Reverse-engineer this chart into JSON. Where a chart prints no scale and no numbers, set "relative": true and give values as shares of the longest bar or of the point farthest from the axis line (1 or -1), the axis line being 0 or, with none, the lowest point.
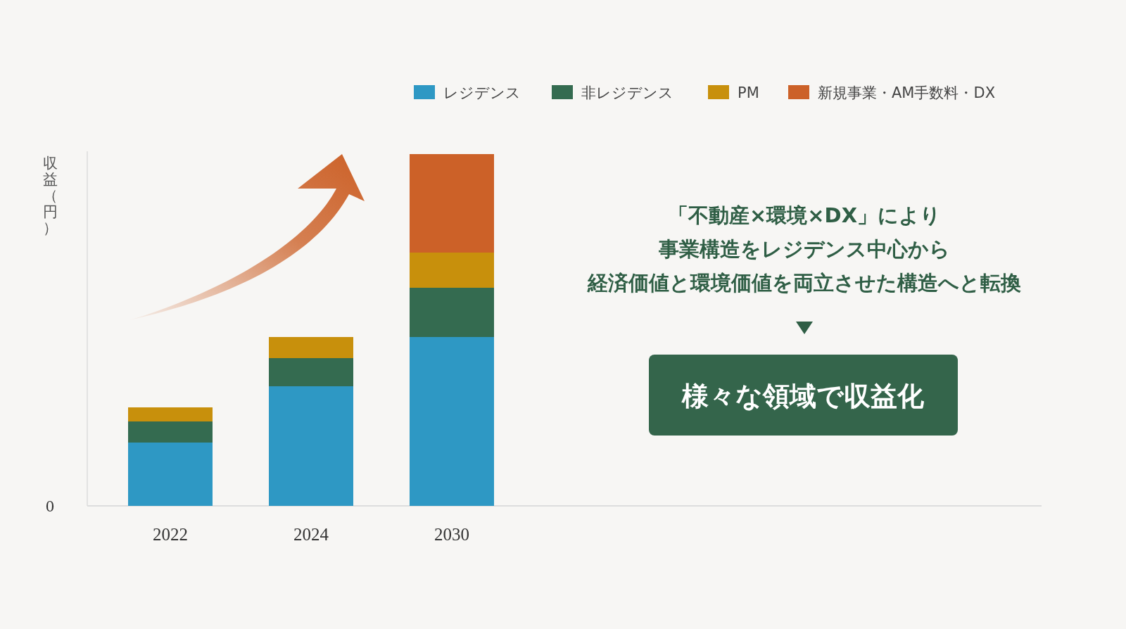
{
  "chart_data": {
    "type": "bar",
    "stacked": true,
    "relative": true,
    "legend": "top right",
    "ylabel": "収益（円）",
    "categories": [
      "2022",
      "2024",
      "2030"
    ],
    "series": [
      {
        "name": "レジデンス",
        "color": "#2e98c4",
        "values": [
          0.18,
          0.34,
          0.48
        ]
      },
      {
        "name": "非レジデンス",
        "color": "#346b50",
        "values": [
          0.06,
          0.08,
          0.14
        ]
      },
      {
        "name": "PM",
        "color": "#c8900c",
        "values": [
          0.04,
          0.06,
          0.1
        ]
      },
      {
        "name": "新規事業・AM手数料・DX",
        "color": "#cc6128",
        "values": [
          null,
          null,
          0.28
        ]
      }
    ],
    "annotations": [
      "0",
      "「不動産×環境×DX」により",
      "事業構造をレジデンス中心から",
      "経済価値と環境価値を両立させた構造へと転換",
      "様々な領域で収益化"
    ]
  }
}
